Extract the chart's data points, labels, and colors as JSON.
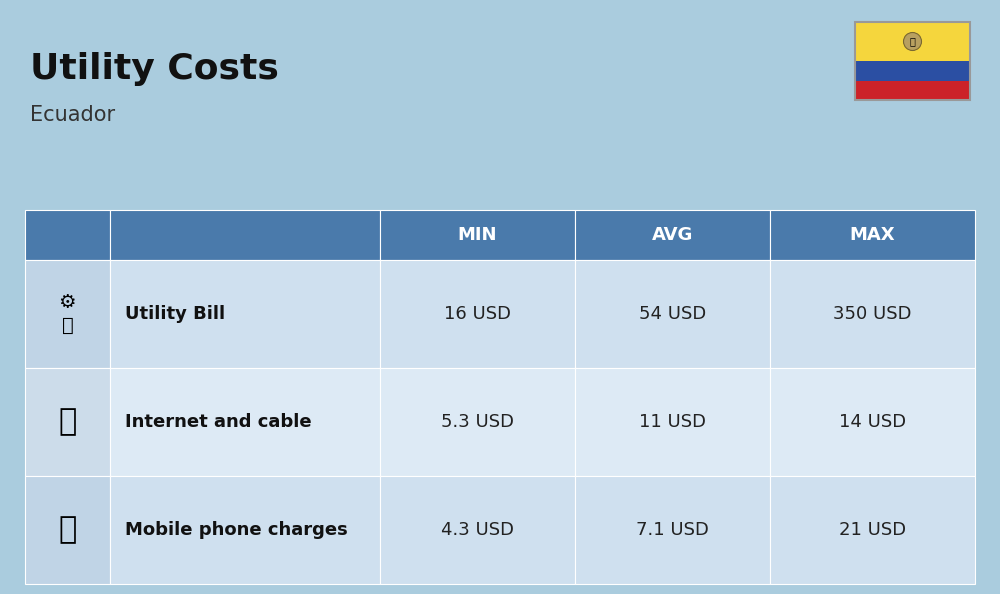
{
  "title": "Utility Costs",
  "subtitle": "Ecuador",
  "background_color": "#aaccde",
  "header_bg_color": "#4a7aab",
  "header_text_color": "#ffffff",
  "row_even_color": "#cfe0ef",
  "row_odd_color": "#ddeaf5",
  "icon_col_even": "#c0d4e6",
  "icon_col_odd": "#ccdcea",
  "columns": [
    "MIN",
    "AVG",
    "MAX"
  ],
  "rows": [
    {
      "icon": "utility",
      "label": "Utility Bill",
      "min": "16 USD",
      "avg": "54 USD",
      "max": "350 USD"
    },
    {
      "icon": "internet",
      "label": "Internet and cable",
      "min": "5.3 USD",
      "avg": "11 USD",
      "max": "14 USD"
    },
    {
      "icon": "mobile",
      "label": "Mobile phone charges",
      "min": "4.3 USD",
      "avg": "7.1 USD",
      "max": "21 USD"
    }
  ],
  "flag_yellow": "#F5D63D",
  "flag_blue": "#2B4FA3",
  "flag_red": "#CC2229",
  "title_fontsize": 26,
  "subtitle_fontsize": 15,
  "header_fontsize": 13,
  "cell_fontsize": 13,
  "label_fontsize": 13
}
